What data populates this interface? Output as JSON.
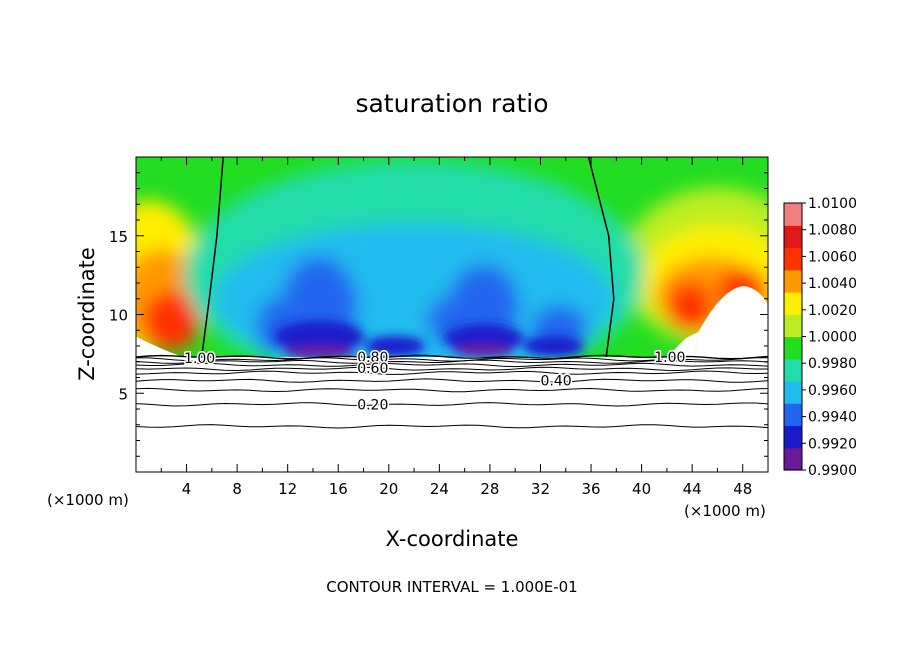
{
  "chart_data": {
    "type": "heatmap",
    "title": "saturation ratio",
    "xlabel": "X-coordinate",
    "ylabel": "Z-coordinate",
    "x_unit_left": "(×1000 m)",
    "x_unit_right": "(×1000 m)",
    "xlim": [
      0,
      50
    ],
    "ylim": [
      0,
      20
    ],
    "xticks": [
      4,
      8,
      12,
      16,
      20,
      24,
      28,
      32,
      36,
      40,
      44,
      48
    ],
    "yticks": [
      5,
      10,
      15
    ],
    "footer": "CONTOUR INTERVAL = 1.000E-01",
    "colorbar": {
      "min": 0.99,
      "max": 1.01,
      "labels": [
        "1.0100",
        "1.0080",
        "1.0060",
        "1.0040",
        "1.0020",
        "1.0000",
        "0.9980",
        "0.9960",
        "0.9940",
        "0.9920",
        "0.9900"
      ],
      "colors": [
        "#6a1b9a",
        "#1a1acc",
        "#2266ee",
        "#22bbee",
        "#22ddaa",
        "#22dd22",
        "#bbee22",
        "#ffee00",
        "#ff9900",
        "#ff3300",
        "#e01818",
        "#f08080"
      ]
    },
    "contour_labels": [
      "1.00",
      "0.80",
      "0.60",
      "0.40",
      "0.20",
      "1.00"
    ],
    "contour_levels": [
      1.0,
      0.9,
      0.8,
      0.7,
      0.6,
      0.5,
      0.4,
      0.3,
      0.2,
      0.1
    ],
    "saturated_region_bottom": 7.3,
    "saturation_line_left_x": [
      6.9,
      6.4,
      5.8,
      5.2
    ],
    "saturation_line_right_x": [
      35.8,
      37.4,
      37.8,
      37.2
    ]
  }
}
